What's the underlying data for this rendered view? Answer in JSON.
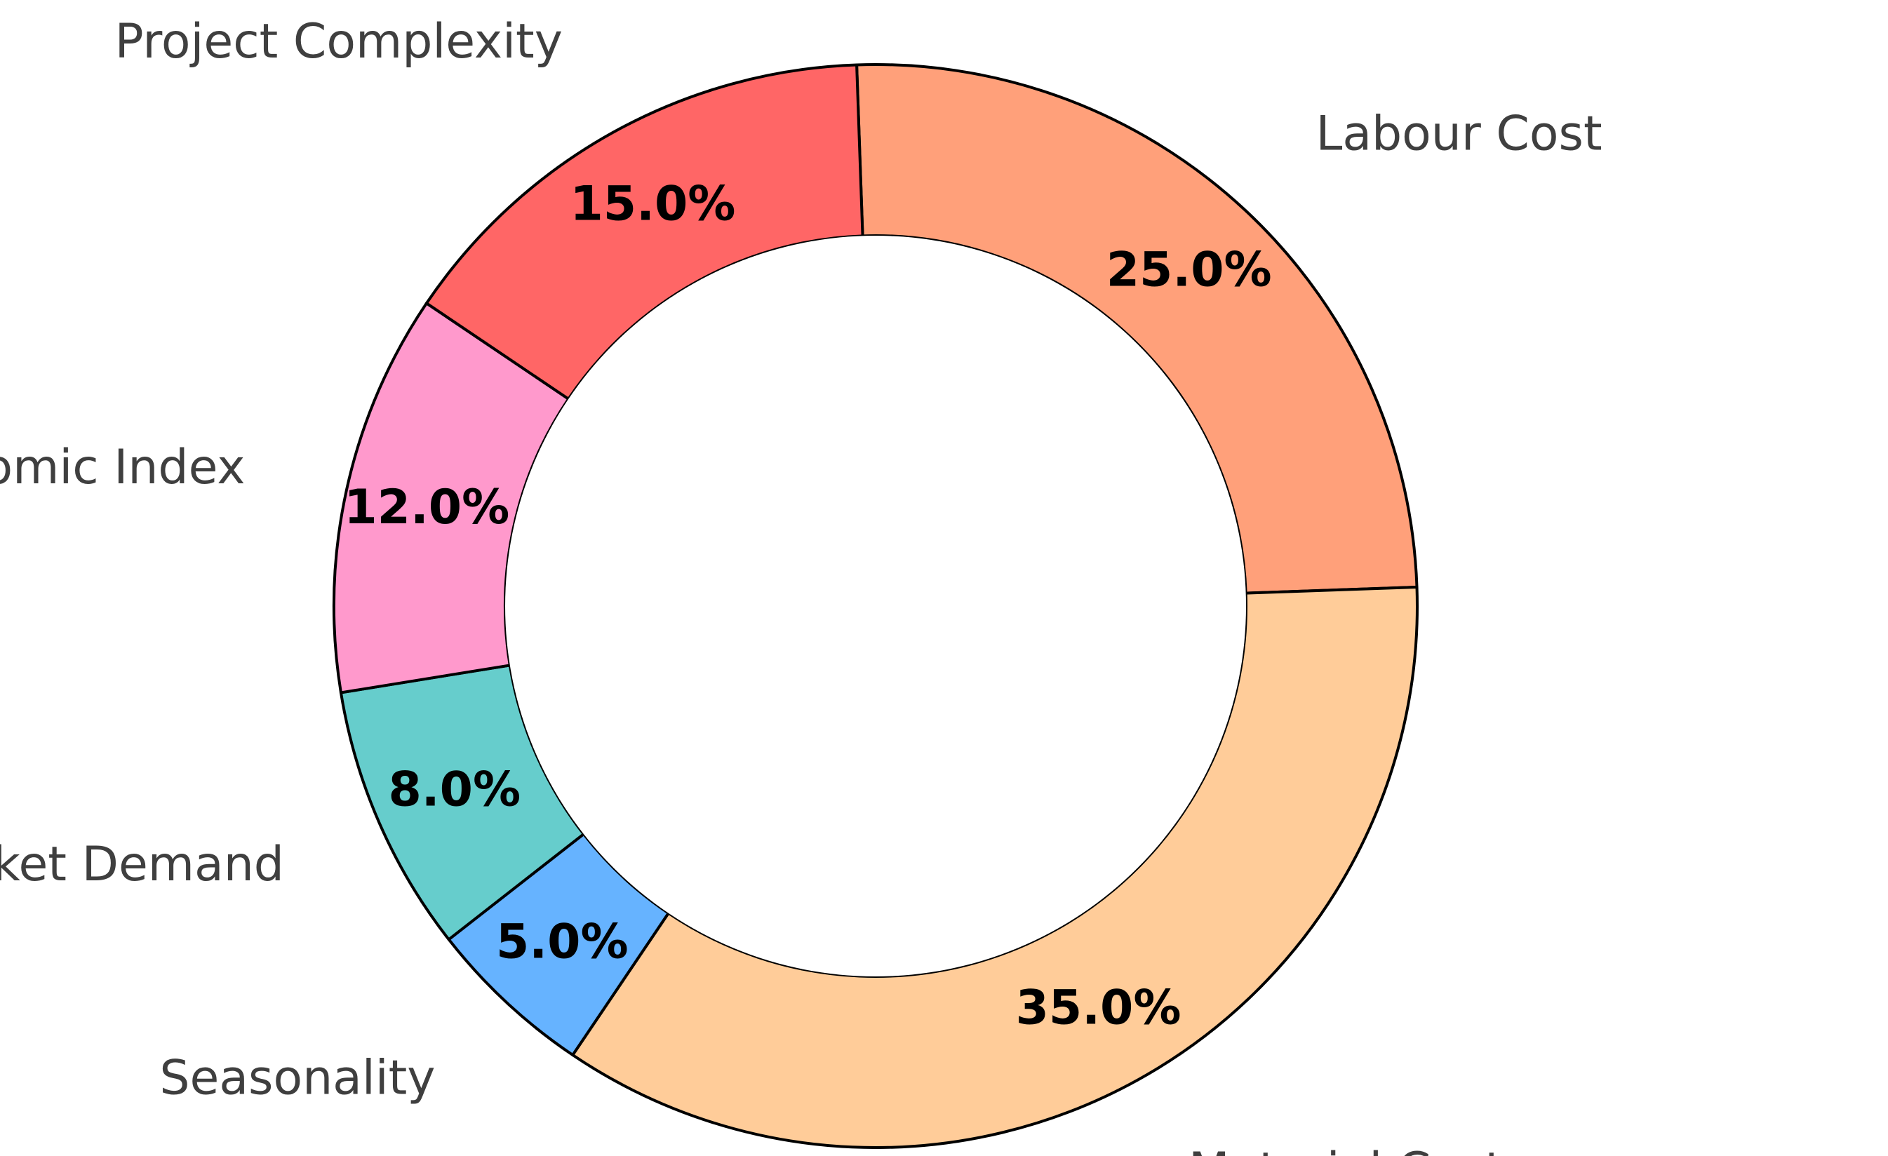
{
  "chart_data": {
    "type": "pie",
    "variant": "donut",
    "title": "",
    "start_angle_deg": 92,
    "direction": "clockwise",
    "slices": [
      {
        "label": "Labour Cost",
        "value": 25.0,
        "pct_text": "25.0%",
        "color": "#FFA07A"
      },
      {
        "label": "Material Cost",
        "value": 35.0,
        "pct_text": "35.0%",
        "color": "#FFCC99"
      },
      {
        "label": "Seasonality",
        "value": 5.0,
        "pct_text": "5.0%",
        "color": "#66B3FF"
      },
      {
        "label": "Market Demand",
        "value": 8.0,
        "pct_text": "8.0%",
        "color": "#66CDCC"
      },
      {
        "label": "Economic Index",
        "value": 12.0,
        "pct_text": "12.0%",
        "color": "#FF99CC"
      },
      {
        "label": "Project Complexity",
        "value": 15.0,
        "pct_text": "15.0%",
        "color": "#FF6666"
      }
    ],
    "legend": "none",
    "labels_outside": true,
    "percent_labels_inside_ring": true,
    "edge_color": "#000000",
    "center_color": "#FFFFFF"
  }
}
